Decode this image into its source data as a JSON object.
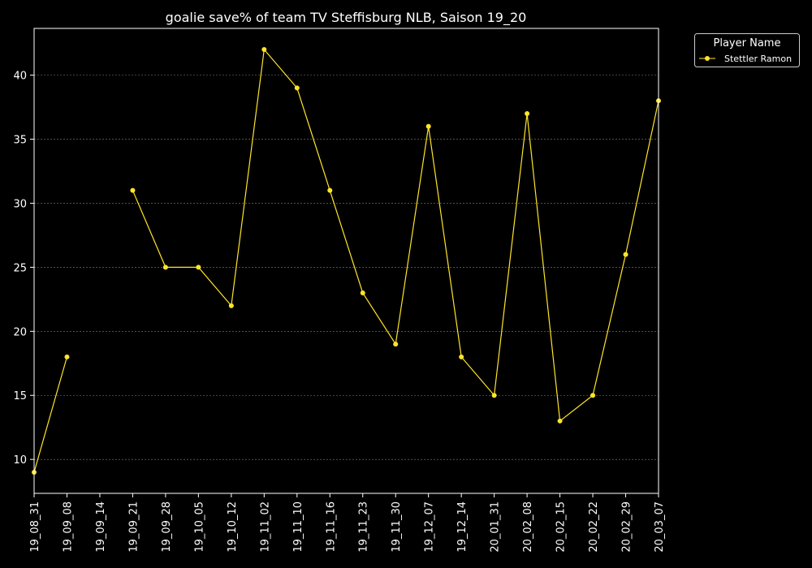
{
  "chart_data": {
    "type": "line",
    "title": "goalie save% of team TV Steffisburg NLB, Saison 19_20",
    "xlabel": "",
    "ylabel": "",
    "categories": [
      "19_08_31",
      "19_09_08",
      "19_09_14",
      "19_09_21",
      "19_09_28",
      "19_10_05",
      "19_10_12",
      "19_11_02",
      "19_11_10",
      "19_11_16",
      "19_11_23",
      "19_11_30",
      "19_12_07",
      "19_12_14",
      "20_01_31",
      "20_02_08",
      "20_02_15",
      "20_02_22",
      "20_02_29",
      "20_03_07"
    ],
    "series": [
      {
        "name": "Stettler Ramon",
        "color": "#ffe529",
        "values": [
          9,
          18,
          null,
          31,
          25,
          25,
          22,
          42,
          39,
          31,
          23,
          19,
          36,
          18,
          15,
          37,
          13,
          15,
          26,
          38
        ]
      }
    ],
    "ylim": [
      7.35,
      43.65
    ],
    "yticks": [
      10,
      15,
      20,
      25,
      30,
      35,
      40
    ],
    "grid": true,
    "legend": {
      "title": "Player Name",
      "placement": "outside-top-right"
    },
    "colors": {
      "background": "#000000",
      "axes": "#ffffff",
      "grid": "#808080"
    }
  }
}
